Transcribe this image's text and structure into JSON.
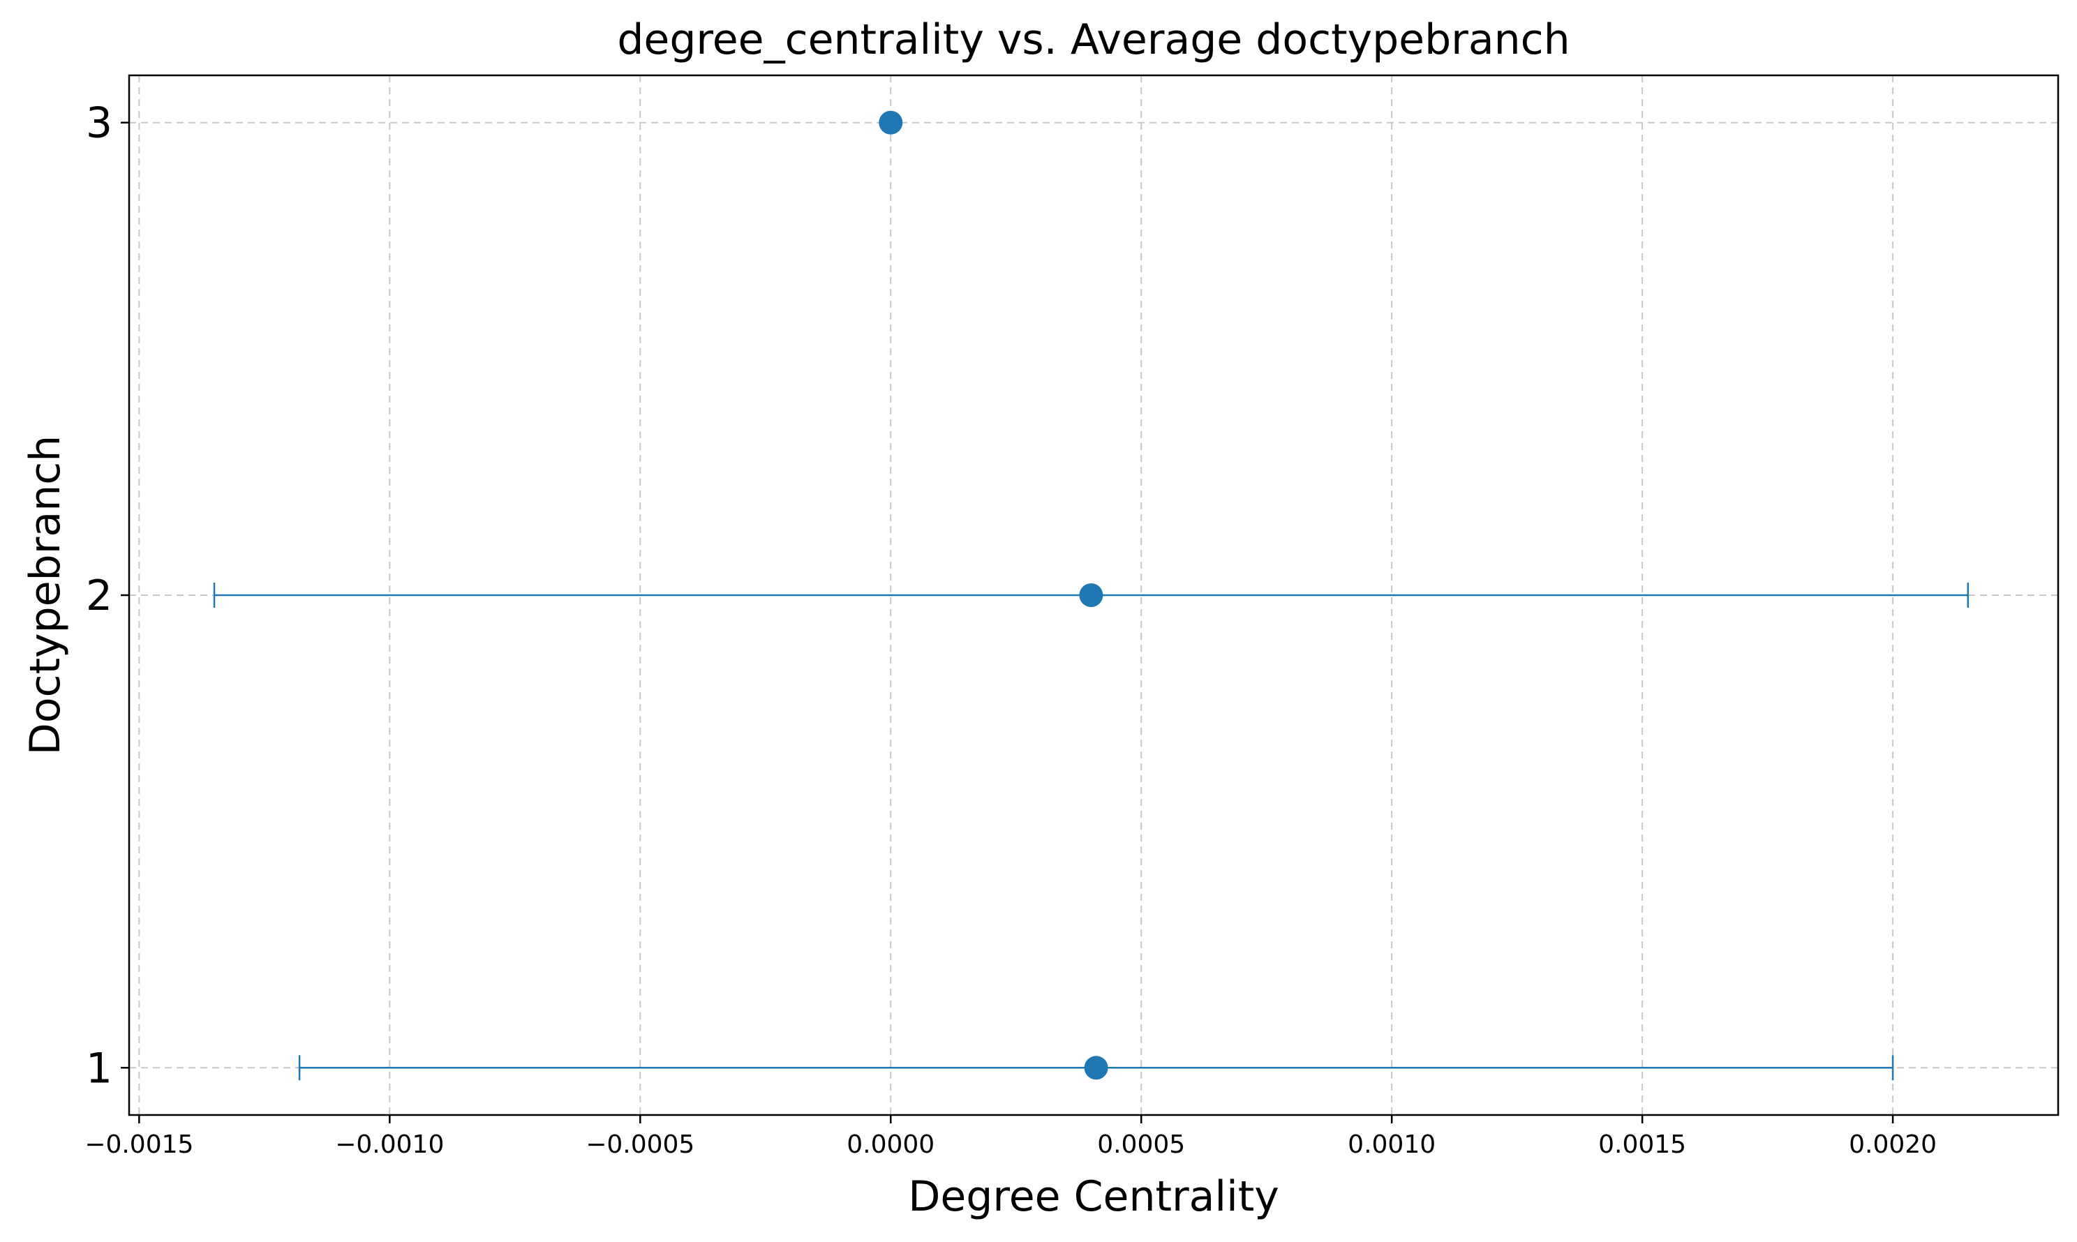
{
  "chart_data": {
    "type": "scatter",
    "title": "degree_centrality vs. Average doctypebranch",
    "xlabel": "Degree Centrality",
    "ylabel": "Doctypebranch",
    "xlim": [
      -0.00152,
      0.00233
    ],
    "ylim": [
      0.9,
      3.1
    ],
    "x_ticks": [
      -0.0015,
      -0.001,
      -0.0005,
      0.0,
      0.0005,
      0.001,
      0.0015,
      0.002
    ],
    "x_tick_labels": [
      "−0.0015",
      "−0.0010",
      "−0.0005",
      "0.0000",
      "0.0005",
      "0.0010",
      "0.0015",
      "0.0020"
    ],
    "y_ticks": [
      1,
      2,
      3
    ],
    "y_tick_labels": [
      "1",
      "2",
      "3"
    ],
    "grid": true,
    "series": [
      {
        "points": [
          {
            "x": 0.00041,
            "y": 1,
            "xerr_low": 0.00159,
            "xerr_high": 0.00159
          },
          {
            "x": 0.0004,
            "y": 2,
            "xerr_low": 0.00175,
            "xerr_high": 0.00175
          },
          {
            "x": 0.0,
            "y": 3,
            "xerr_low": 0.0,
            "xerr_high": 0.0
          }
        ]
      }
    ],
    "colors": {
      "series": "#1f77b4",
      "grid": "#c8c8c8",
      "axes": "#000000"
    }
  }
}
